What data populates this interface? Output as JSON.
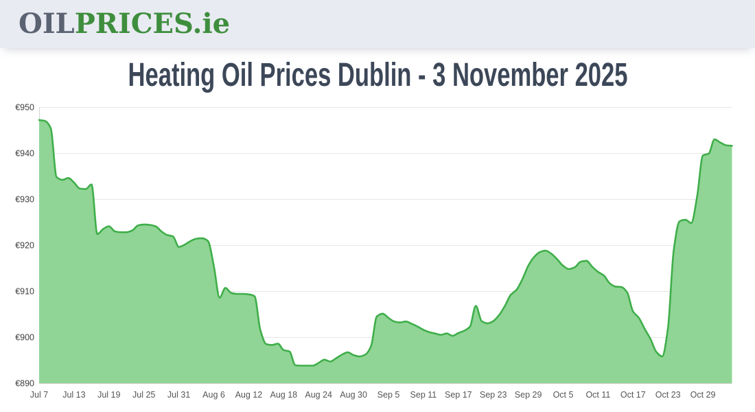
{
  "header": {
    "logo": {
      "part1": "OIL",
      "part2": "PRICES",
      "part3": ".ie"
    }
  },
  "title": "Heating Oil Prices Dublin - 3 November 2025",
  "colors": {
    "header_bg": "#e9ebf2",
    "logo_gray": "#5b6373",
    "logo_green": "#3e8e3e",
    "title_text": "#3c4758",
    "grid": "#e6e6e6",
    "axis_line": "#d4d4d4",
    "baseline": "#cfcfcf",
    "area_fill": "#90d595",
    "line": "#3fae4a"
  },
  "chart_data": {
    "type": "area",
    "title": "Heating Oil Prices Dublin - 3 November 2025",
    "xlabel": "",
    "ylabel": "",
    "ylim": [
      890,
      950
    ],
    "grid": "horizontal",
    "legend": "none",
    "currency": "EUR",
    "ytick_labels": [
      "€890",
      "€900",
      "€910",
      "€920",
      "€930",
      "€940",
      "€950"
    ],
    "yticks": [
      890,
      900,
      910,
      920,
      930,
      940,
      950
    ],
    "xtick_labels": [
      "Jul 7",
      "Jul 13",
      "Jul 19",
      "Jul 25",
      "Jul 31",
      "Aug 6",
      "Aug 12",
      "Aug 18",
      "Aug 24",
      "Aug 30",
      "Sep 5",
      "Sep 11",
      "Sep 17",
      "Sep 23",
      "Sep 29",
      "Oct 5",
      "Oct 11",
      "Oct 17",
      "Oct 23",
      "Oct 29"
    ],
    "xtick_days": [
      0,
      6,
      12,
      18,
      24,
      30,
      36,
      42,
      48,
      54,
      60,
      66,
      72,
      78,
      84,
      90,
      96,
      102,
      108,
      114
    ],
    "dates": [
      "Jul 7",
      "Jul 8",
      "Jul 9",
      "Jul 10",
      "Jul 11",
      "Jul 12",
      "Jul 13",
      "Jul 14",
      "Jul 15",
      "Jul 16",
      "Jul 17",
      "Jul 18",
      "Jul 19",
      "Jul 20",
      "Jul 21",
      "Jul 22",
      "Jul 23",
      "Jul 24",
      "Jul 25",
      "Jul 26",
      "Jul 27",
      "Jul 28",
      "Jul 29",
      "Jul 30",
      "Jul 31",
      "Aug 1",
      "Aug 2",
      "Aug 3",
      "Aug 4",
      "Aug 5",
      "Aug 6",
      "Aug 7",
      "Aug 8",
      "Aug 9",
      "Aug 10",
      "Aug 11",
      "Aug 12",
      "Aug 13",
      "Aug 14",
      "Aug 15",
      "Aug 16",
      "Aug 17",
      "Aug 18",
      "Aug 19",
      "Aug 20",
      "Aug 21",
      "Aug 22",
      "Aug 23",
      "Aug 24",
      "Aug 25",
      "Aug 26",
      "Aug 27",
      "Aug 28",
      "Aug 29",
      "Aug 30",
      "Aug 31",
      "Sep 1",
      "Sep 2",
      "Sep 3",
      "Sep 4",
      "Sep 5",
      "Sep 6",
      "Sep 7",
      "Sep 8",
      "Sep 9",
      "Sep 10",
      "Sep 11",
      "Sep 12",
      "Sep 13",
      "Sep 14",
      "Sep 15",
      "Sep 16",
      "Sep 17",
      "Sep 18",
      "Sep 19",
      "Sep 20",
      "Sep 21",
      "Sep 22",
      "Sep 23",
      "Sep 24",
      "Sep 25",
      "Sep 26",
      "Sep 27",
      "Sep 28",
      "Sep 29",
      "Sep 30",
      "Oct 1",
      "Oct 2",
      "Oct 3",
      "Oct 4",
      "Oct 5",
      "Oct 6",
      "Oct 7",
      "Oct 8",
      "Oct 9",
      "Oct 10",
      "Oct 11",
      "Oct 12",
      "Oct 13",
      "Oct 14",
      "Oct 15",
      "Oct 16",
      "Oct 17",
      "Oct 18",
      "Oct 19",
      "Oct 20",
      "Oct 21",
      "Oct 22",
      "Oct 23",
      "Oct 24",
      "Oct 25",
      "Oct 26",
      "Oct 27",
      "Oct 28",
      "Oct 29",
      "Oct 30",
      "Oct 31",
      "Nov 1",
      "Nov 2",
      "Nov 3"
    ],
    "values": [
      947.2,
      947.0,
      945.4,
      934.8,
      934.2,
      934.6,
      933.6,
      932.3,
      932.2,
      933.2,
      922.4,
      923.5,
      924.1,
      923.0,
      922.8,
      922.8,
      923.2,
      924.3,
      924.5,
      924.4,
      924.1,
      923.0,
      922.2,
      921.9,
      919.6,
      920.1,
      920.9,
      921.4,
      921.5,
      920.9,
      915.5,
      908.6,
      910.7,
      909.6,
      909.4,
      909.4,
      909.3,
      908.9,
      901.5,
      898.5,
      898.3,
      898.6,
      897.2,
      896.9,
      893.9,
      893.8,
      893.8,
      893.8,
      894.4,
      895.1,
      894.7,
      895.4,
      896.2,
      896.7,
      896.1,
      895.8,
      896.2,
      898.0,
      904.5,
      905.1,
      904.2,
      903.4,
      903.2,
      903.4,
      902.9,
      902.3,
      901.6,
      901.1,
      900.8,
      900.5,
      900.8,
      900.3,
      900.9,
      901.4,
      902.3,
      906.8,
      903.5,
      903.0,
      903.5,
      904.8,
      906.8,
      909.2,
      910.3,
      912.6,
      915.5,
      917.4,
      918.5,
      918.8,
      918.1,
      916.9,
      915.5,
      914.8,
      915.2,
      916.4,
      916.6,
      915.3,
      914.2,
      913.4,
      911.7,
      911.0,
      910.9,
      909.7,
      905.6,
      904.2,
      901.8,
      899.6,
      896.8,
      895.8,
      902.0,
      919.0,
      925.2,
      925.5,
      924.8,
      930.5,
      939.5,
      939.9,
      943.0,
      942.3,
      941.7,
      941.6
    ]
  }
}
